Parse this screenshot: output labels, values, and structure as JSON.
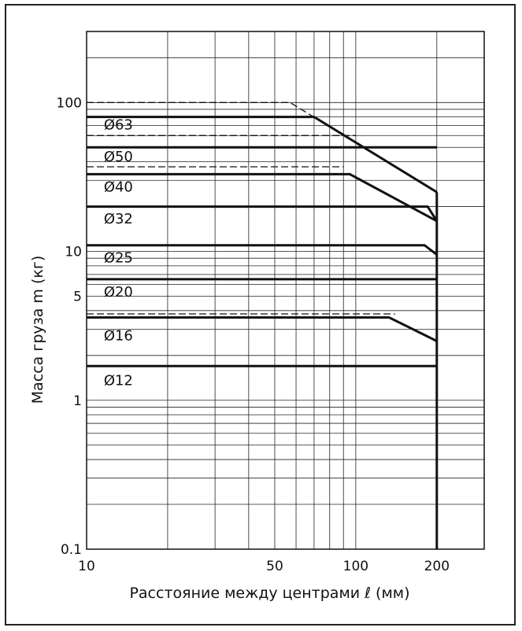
{
  "chart_data": {
    "type": "line",
    "xscale": "log",
    "yscale": "log",
    "xlim": [
      10,
      300
    ],
    "ylim": [
      0.1,
      300
    ],
    "xticks": [
      {
        "value": 10,
        "label": "10"
      },
      {
        "value": 50,
        "label": "50"
      },
      {
        "value": 100,
        "label": "100"
      },
      {
        "value": 200,
        "label": "200"
      }
    ],
    "yticks": [
      {
        "value": 0.1,
        "label": "0.1"
      },
      {
        "value": 1,
        "label": "1"
      },
      {
        "value": 5,
        "label": "5"
      },
      {
        "value": 10,
        "label": "10"
      },
      {
        "value": 100,
        "label": "100"
      }
    ],
    "xlabel": "Расстояние между центрами ℓ (мм)",
    "ylabel": "Масса груза m (кг)",
    "grid": true,
    "line_color": "#111111",
    "series": [
      {
        "name": "Ø63",
        "style": "dashed",
        "points": [
          [
            10,
            100
          ],
          [
            57,
            100
          ],
          [
            200,
            25
          ]
        ]
      },
      {
        "name": "Ø63",
        "style": "solid",
        "points": [
          [
            10,
            80
          ],
          [
            70,
            80
          ],
          [
            200,
            25
          ]
        ]
      },
      {
        "name": "Ø50",
        "style": "dashed",
        "points": [
          [
            10,
            60
          ],
          [
            100,
            60
          ]
        ]
      },
      {
        "name": "Ø50",
        "style": "solid",
        "points": [
          [
            10,
            50
          ],
          [
            200,
            50
          ]
        ]
      },
      {
        "name": "Ø40",
        "style": "dashed",
        "points": [
          [
            10,
            37
          ],
          [
            90,
            37
          ]
        ]
      },
      {
        "name": "Ø40",
        "style": "solid",
        "points": [
          [
            10,
            33
          ],
          [
            95,
            33
          ],
          [
            200,
            16
          ]
        ]
      },
      {
        "name": "Ø32",
        "style": "solid",
        "points": [
          [
            10,
            20
          ],
          [
            185,
            20
          ],
          [
            200,
            16
          ]
        ]
      },
      {
        "name": "Ø25",
        "style": "solid",
        "points": [
          [
            10,
            11
          ],
          [
            180,
            11
          ],
          [
            200,
            9.5
          ]
        ]
      },
      {
        "name": "Ø20",
        "style": "solid",
        "points": [
          [
            10,
            6.5
          ],
          [
            200,
            6.5
          ]
        ]
      },
      {
        "name": "Ø16",
        "style": "dashed",
        "points": [
          [
            10,
            3.8
          ],
          [
            140,
            3.8
          ]
        ]
      },
      {
        "name": "Ø16",
        "style": "solid",
        "points": [
          [
            10,
            3.6
          ],
          [
            133,
            3.6
          ],
          [
            200,
            2.5
          ]
        ]
      },
      {
        "name": "Ø12",
        "style": "solid",
        "points": [
          [
            10,
            1.7
          ],
          [
            200,
            1.7
          ]
        ]
      }
    ],
    "max_distance": {
      "x": 200,
      "y_range": [
        0.1,
        25
      ]
    },
    "labels": [
      {
        "text": "Ø63",
        "x": 11.2,
        "y": 72
      },
      {
        "text": "Ø50",
        "x": 11.2,
        "y": 44
      },
      {
        "text": "Ø40",
        "x": 11.2,
        "y": 27.5
      },
      {
        "text": "Ø32",
        "x": 11.2,
        "y": 16.8
      },
      {
        "text": "Ø25",
        "x": 11.2,
        "y": 9.2
      },
      {
        "text": "Ø20",
        "x": 11.2,
        "y": 5.4
      },
      {
        "text": "Ø16",
        "x": 11.2,
        "y": 2.75
      },
      {
        "text": "Ø12",
        "x": 11.2,
        "y": 1.38
      }
    ]
  }
}
